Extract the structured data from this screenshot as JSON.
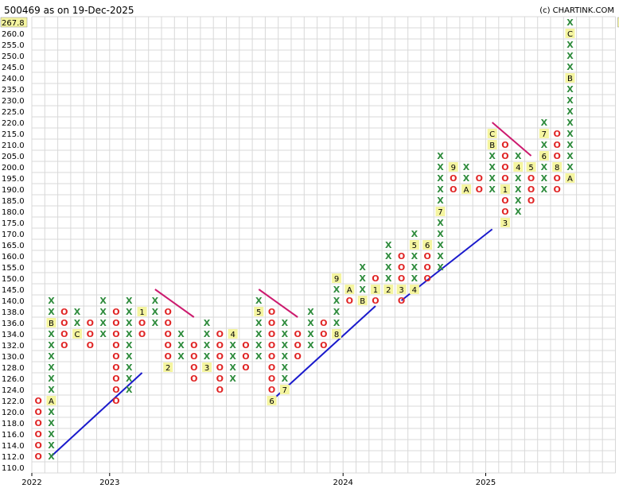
{
  "header": {
    "title": "500469 as on 19-Dec-2025",
    "copyright": "(c) CHARTINK.COM"
  },
  "chart_data": {
    "type": "point-and-figure",
    "box_size": 2.0,
    "last_price": "267.8",
    "ylim": [
      110.0,
      267.8
    ],
    "y_ticks": [
      "110.0",
      "112.0",
      "114.0",
      "116.0",
      "118.0",
      "120.0",
      "122.0",
      "124.0",
      "126.0",
      "128.0",
      "130.0",
      "132.0",
      "134.0",
      "136.0",
      "138.0",
      "140.0",
      "145.0",
      "150.0",
      "155.0",
      "160.0",
      "165.0",
      "170.0",
      "175.0",
      "180.0",
      "185.0",
      "190.0",
      "195.0",
      "200.0",
      "205.0",
      "210.0",
      "215.0",
      "220.0",
      "225.0",
      "230.0",
      "235.0",
      "240.0",
      "245.0",
      "250.0",
      "255.0",
      "260.0",
      "267.8"
    ],
    "x_labels": [
      {
        "label": "2022",
        "col": 0
      },
      {
        "label": "2023",
        "col": 6
      },
      {
        "label": "2024",
        "col": 24
      },
      {
        "label": "2025",
        "col": 35
      }
    ],
    "columns": [
      {
        "type": "O",
        "cells": [
          [
            122,
            "O"
          ],
          [
            120,
            "O"
          ],
          [
            118,
            "O"
          ],
          [
            116,
            "O"
          ],
          [
            114,
            "O"
          ],
          [
            112,
            "O"
          ]
        ]
      },
      {
        "type": "X",
        "cells": [
          [
            112,
            "X"
          ],
          [
            114,
            "X"
          ],
          [
            116,
            "X"
          ],
          [
            118,
            "X"
          ],
          [
            120,
            "X"
          ],
          [
            122,
            "A"
          ],
          [
            124,
            "X"
          ],
          [
            126,
            "X"
          ],
          [
            128,
            "X"
          ],
          [
            130,
            "X"
          ],
          [
            132,
            "X"
          ],
          [
            134,
            "X"
          ],
          [
            136,
            "B"
          ],
          [
            138,
            "X"
          ],
          [
            140,
            "X"
          ]
        ]
      },
      {
        "type": "O",
        "cells": [
          [
            138,
            "O"
          ],
          [
            136,
            "O"
          ],
          [
            134,
            "O"
          ],
          [
            132,
            "O"
          ]
        ]
      },
      {
        "type": "X",
        "cells": [
          [
            134,
            "C"
          ],
          [
            136,
            "X"
          ],
          [
            138,
            "X"
          ]
        ]
      },
      {
        "type": "O",
        "cells": [
          [
            136,
            "O"
          ],
          [
            134,
            "O"
          ],
          [
            132,
            "O"
          ]
        ]
      },
      {
        "type": "X",
        "cells": [
          [
            134,
            "X"
          ],
          [
            136,
            "X"
          ],
          [
            138,
            "X"
          ],
          [
            140,
            "X"
          ]
        ]
      },
      {
        "type": "O",
        "cells": [
          [
            138,
            "O"
          ],
          [
            136,
            "O"
          ],
          [
            134,
            "O"
          ],
          [
            132,
            "O"
          ],
          [
            130,
            "O"
          ],
          [
            128,
            "O"
          ],
          [
            126,
            "O"
          ],
          [
            124,
            "O"
          ],
          [
            122,
            "O"
          ]
        ]
      },
      {
        "type": "X",
        "cells": [
          [
            124,
            "X"
          ],
          [
            126,
            "X"
          ],
          [
            128,
            "X"
          ],
          [
            130,
            "X"
          ],
          [
            132,
            "X"
          ],
          [
            134,
            "X"
          ],
          [
            136,
            "X"
          ],
          [
            138,
            "X"
          ],
          [
            140,
            "X"
          ]
        ]
      },
      {
        "type": "O",
        "cells": [
          [
            138,
            "1"
          ],
          [
            136,
            "O"
          ],
          [
            134,
            "O"
          ]
        ]
      },
      {
        "type": "X",
        "cells": [
          [
            136,
            "X"
          ],
          [
            138,
            "X"
          ],
          [
            140,
            "X"
          ]
        ]
      },
      {
        "type": "O",
        "cells": [
          [
            138,
            "O"
          ],
          [
            136,
            "O"
          ],
          [
            134,
            "O"
          ],
          [
            132,
            "O"
          ],
          [
            130,
            "O"
          ],
          [
            128,
            "2"
          ]
        ]
      },
      {
        "type": "X",
        "cells": [
          [
            130,
            "X"
          ],
          [
            132,
            "X"
          ],
          [
            134,
            "X"
          ]
        ]
      },
      {
        "type": "O",
        "cells": [
          [
            132,
            "O"
          ],
          [
            130,
            "O"
          ],
          [
            128,
            "O"
          ],
          [
            126,
            "O"
          ]
        ]
      },
      {
        "type": "X",
        "cells": [
          [
            128,
            "3"
          ],
          [
            130,
            "X"
          ],
          [
            132,
            "X"
          ],
          [
            134,
            "X"
          ],
          [
            136,
            "X"
          ]
        ]
      },
      {
        "type": "O",
        "cells": [
          [
            134,
            "O"
          ],
          [
            132,
            "O"
          ],
          [
            130,
            "O"
          ],
          [
            128,
            "O"
          ],
          [
            126,
            "O"
          ],
          [
            124,
            "O"
          ]
        ]
      },
      {
        "type": "X",
        "cells": [
          [
            126,
            "X"
          ],
          [
            128,
            "X"
          ],
          [
            130,
            "X"
          ],
          [
            132,
            "X"
          ],
          [
            134,
            "4"
          ]
        ]
      },
      {
        "type": "O",
        "cells": [
          [
            132,
            "O"
          ],
          [
            130,
            "O"
          ],
          [
            128,
            "O"
          ]
        ]
      },
      {
        "type": "X",
        "cells": [
          [
            130,
            "X"
          ],
          [
            132,
            "X"
          ],
          [
            134,
            "X"
          ],
          [
            136,
            "X"
          ],
          [
            138,
            "5"
          ],
          [
            140,
            "X"
          ]
        ]
      },
      {
        "type": "O",
        "cells": [
          [
            138,
            "O"
          ],
          [
            136,
            "O"
          ],
          [
            134,
            "O"
          ],
          [
            132,
            "O"
          ],
          [
            130,
            "O"
          ],
          [
            128,
            "O"
          ],
          [
            126,
            "O"
          ],
          [
            124,
            "O"
          ],
          [
            122,
            "6"
          ]
        ]
      },
      {
        "type": "X",
        "cells": [
          [
            124,
            "7"
          ],
          [
            126,
            "X"
          ],
          [
            128,
            "X"
          ],
          [
            130,
            "X"
          ],
          [
            132,
            "X"
          ],
          [
            134,
            "X"
          ],
          [
            136,
            "X"
          ]
        ]
      },
      {
        "type": "O",
        "cells": [
          [
            134,
            "O"
          ],
          [
            132,
            "O"
          ],
          [
            130,
            "O"
          ]
        ]
      },
      {
        "type": "X",
        "cells": [
          [
            132,
            "X"
          ],
          [
            134,
            "X"
          ],
          [
            136,
            "X"
          ],
          [
            138,
            "X"
          ]
        ]
      },
      {
        "type": "O",
        "cells": [
          [
            136,
            "O"
          ],
          [
            134,
            "O"
          ],
          [
            132,
            "O"
          ]
        ]
      },
      {
        "type": "X",
        "cells": [
          [
            134,
            "8"
          ],
          [
            136,
            "X"
          ],
          [
            138,
            "X"
          ],
          [
            140,
            "X"
          ],
          [
            145,
            "X"
          ],
          [
            150,
            "9"
          ]
        ]
      },
      {
        "type": "O",
        "cells": [
          [
            145,
            "A"
          ],
          [
            140,
            "O"
          ]
        ]
      },
      {
        "type": "X",
        "cells": [
          [
            140,
            "B"
          ],
          [
            145,
            "X"
          ],
          [
            150,
            "X"
          ],
          [
            155,
            "X"
          ]
        ]
      },
      {
        "type": "O",
        "cells": [
          [
            150,
            "O"
          ],
          [
            145,
            "1"
          ],
          [
            140,
            "O"
          ]
        ]
      },
      {
        "type": "X",
        "cells": [
          [
            145,
            "2"
          ],
          [
            150,
            "X"
          ],
          [
            155,
            "X"
          ],
          [
            160,
            "X"
          ],
          [
            165,
            "X"
          ]
        ]
      },
      {
        "type": "O",
        "cells": [
          [
            160,
            "O"
          ],
          [
            155,
            "O"
          ],
          [
            150,
            "O"
          ],
          [
            145,
            "3"
          ],
          [
            140,
            "O"
          ]
        ]
      },
      {
        "type": "X",
        "cells": [
          [
            145,
            "4"
          ],
          [
            150,
            "X"
          ],
          [
            155,
            "X"
          ],
          [
            160,
            "X"
          ],
          [
            165,
            "5"
          ],
          [
            170,
            "X"
          ]
        ]
      },
      {
        "type": "O",
        "cells": [
          [
            165,
            "6"
          ],
          [
            160,
            "O"
          ],
          [
            155,
            "O"
          ],
          [
            150,
            "O"
          ]
        ]
      },
      {
        "type": "X",
        "cells": [
          [
            155,
            "X"
          ],
          [
            160,
            "X"
          ],
          [
            165,
            "X"
          ],
          [
            170,
            "X"
          ],
          [
            175,
            "X"
          ],
          [
            180,
            "7"
          ],
          [
            185,
            "X"
          ],
          [
            190,
            "X"
          ],
          [
            195,
            "X"
          ],
          [
            200,
            "X"
          ],
          [
            205,
            "X"
          ]
        ]
      },
      {
        "type": "O",
        "cells": [
          [
            200,
            "9"
          ],
          [
            195,
            "O"
          ],
          [
            190,
            "O"
          ]
        ]
      },
      {
        "type": "X",
        "cells": [
          [
            190,
            "A"
          ],
          [
            195,
            "X"
          ],
          [
            200,
            "X"
          ]
        ]
      },
      {
        "type": "O",
        "cells": [
          [
            195,
            "O"
          ],
          [
            190,
            "O"
          ]
        ]
      },
      {
        "type": "X",
        "cells": [
          [
            190,
            "X"
          ],
          [
            195,
            "X"
          ],
          [
            200,
            "X"
          ],
          [
            205,
            "X"
          ],
          [
            210,
            "B"
          ],
          [
            215,
            "C"
          ]
        ]
      },
      {
        "type": "O",
        "cells": [
          [
            210,
            "O"
          ],
          [
            205,
            "O"
          ],
          [
            200,
            "O"
          ],
          [
            195,
            "O"
          ],
          [
            190,
            "1"
          ],
          [
            185,
            "O"
          ],
          [
            180,
            "O"
          ],
          [
            175,
            "3"
          ]
        ]
      },
      {
        "type": "X",
        "cells": [
          [
            180,
            "X"
          ],
          [
            185,
            "X"
          ],
          [
            190,
            "X"
          ],
          [
            195,
            "X"
          ],
          [
            200,
            "4"
          ],
          [
            205,
            "X"
          ]
        ]
      },
      {
        "type": "O",
        "cells": [
          [
            200,
            "5"
          ],
          [
            195,
            "O"
          ],
          [
            190,
            "O"
          ],
          [
            185,
            "O"
          ]
        ]
      },
      {
        "type": "X",
        "cells": [
          [
            190,
            "X"
          ],
          [
            195,
            "X"
          ],
          [
            200,
            "X"
          ],
          [
            205,
            "6"
          ],
          [
            210,
            "X"
          ],
          [
            215,
            "7"
          ],
          [
            220,
            "X"
          ]
        ]
      },
      {
        "type": "O",
        "cells": [
          [
            215,
            "O"
          ],
          [
            210,
            "O"
          ],
          [
            205,
            "O"
          ],
          [
            200,
            "8"
          ],
          [
            195,
            "O"
          ],
          [
            190,
            "O"
          ]
        ]
      },
      {
        "type": "X",
        "cells": [
          [
            195,
            "A"
          ],
          [
            200,
            "X"
          ],
          [
            205,
            "X"
          ],
          [
            210,
            "X"
          ],
          [
            215,
            "X"
          ],
          [
            220,
            "X"
          ],
          [
            225,
            "X"
          ],
          [
            230,
            "X"
          ],
          [
            235,
            "X"
          ],
          [
            240,
            "B"
          ],
          [
            245,
            "X"
          ],
          [
            250,
            "X"
          ],
          [
            255,
            "X"
          ],
          [
            260,
            "C"
          ],
          [
            267.8,
            "X"
          ]
        ]
      }
    ],
    "trendlines": [
      {
        "color": "#1a1acc",
        "from": {
          "col": 1,
          "value": 112
        },
        "to": {
          "col": 8,
          "value": 127
        }
      },
      {
        "color": "#1a1acc",
        "from": {
          "col": 18,
          "value": 122
        },
        "to": {
          "col": 26,
          "value": 139
        }
      },
      {
        "color": "#1a1acc",
        "from": {
          "col": 28,
          "value": 140
        },
        "to": {
          "col": 35,
          "value": 172
        }
      },
      {
        "color": "#cc1a6e",
        "from": {
          "col": 9,
          "value": 145
        },
        "to": {
          "col": 12,
          "value": 137
        }
      },
      {
        "color": "#cc1a6e",
        "from": {
          "col": 17,
          "value": 145
        },
        "to": {
          "col": 20,
          "value": 137
        }
      },
      {
        "color": "#cc1a6e",
        "from": {
          "col": 35,
          "value": 220
        },
        "to": {
          "col": 38,
          "value": 205
        }
      }
    ],
    "colors": {
      "x": "#2e8b3c",
      "o": "#e02424",
      "grid": "#d8d8d8",
      "highlight": "#f5f5a0"
    }
  }
}
